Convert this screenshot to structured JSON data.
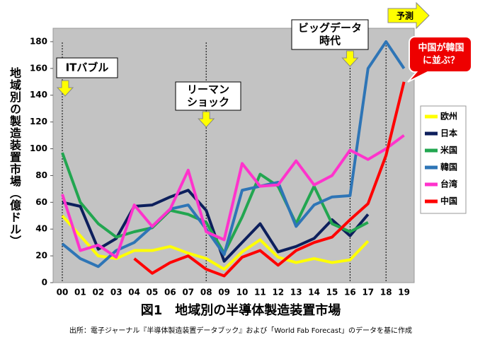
{
  "chart_data": {
    "type": "line",
    "title": "図1　地域別の半導体製造装置市場",
    "source": "出所：電子ジャーナル『半導体製造装置データブック』および「World Fab Forecast」のデータを基に作成",
    "y_label": "地域別の製造装置市場（億ドル）",
    "categories": [
      "00",
      "01",
      "02",
      "03",
      "04",
      "05",
      "06",
      "07",
      "08",
      "09",
      "10",
      "11",
      "12",
      "13",
      "14",
      "15",
      "16",
      "17",
      "18",
      "19"
    ],
    "ylim": [
      0,
      190
    ],
    "yticks": [
      0,
      20,
      40,
      60,
      80,
      100,
      120,
      140,
      160,
      180
    ],
    "grid": false,
    "legend": "right",
    "series": [
      {
        "name": "欧州",
        "color": "#ffff00",
        "values": [
          50,
          35,
          20,
          18,
          24,
          24,
          27,
          22,
          18,
          10,
          23,
          32,
          19,
          15,
          18,
          15,
          17,
          31,
          null,
          null
        ]
      },
      {
        "name": "日本",
        "color": "#0d1f5c",
        "values": [
          60,
          57,
          25,
          33,
          57,
          58,
          64,
          69,
          54,
          16,
          30,
          44,
          23,
          27,
          33,
          47,
          35,
          51,
          null,
          null
        ]
      },
      {
        "name": "米国",
        "color": "#22a650",
        "values": [
          97,
          60,
          44,
          34,
          38,
          41,
          54,
          51,
          45,
          22,
          49,
          81,
          72,
          44,
          72,
          44,
          38,
          45,
          null,
          null
        ]
      },
      {
        "name": "韓国",
        "color": "#2e75b6",
        "values": [
          29,
          18,
          12,
          24,
          30,
          42,
          55,
          58,
          40,
          21,
          69,
          72,
          75,
          42,
          58,
          64,
          65,
          160,
          180,
          160
        ]
      },
      {
        "name": "台湾",
        "color": "#ff33cc",
        "values": [
          66,
          24,
          28,
          19,
          58,
          42,
          55,
          84,
          38,
          32,
          89,
          72,
          73,
          91,
          73,
          80,
          99,
          92,
          100,
          110
        ]
      },
      {
        "name": "中国",
        "color": "#ff0000",
        "values": [
          null,
          null,
          null,
          null,
          18,
          7,
          15,
          20,
          10,
          5,
          19,
          24,
          13,
          24,
          30,
          34,
          47,
          59,
          95,
          150
        ]
      }
    ],
    "annotations": [
      [
        "ITバブル"
      ],
      [
        "リーマン",
        "ショック"
      ],
      [
        "ビッグデータ",
        "時代"
      ],
      [
        "予測"
      ],
      [
        "中国が韓国",
        "に並ぶ？"
      ]
    ]
  }
}
